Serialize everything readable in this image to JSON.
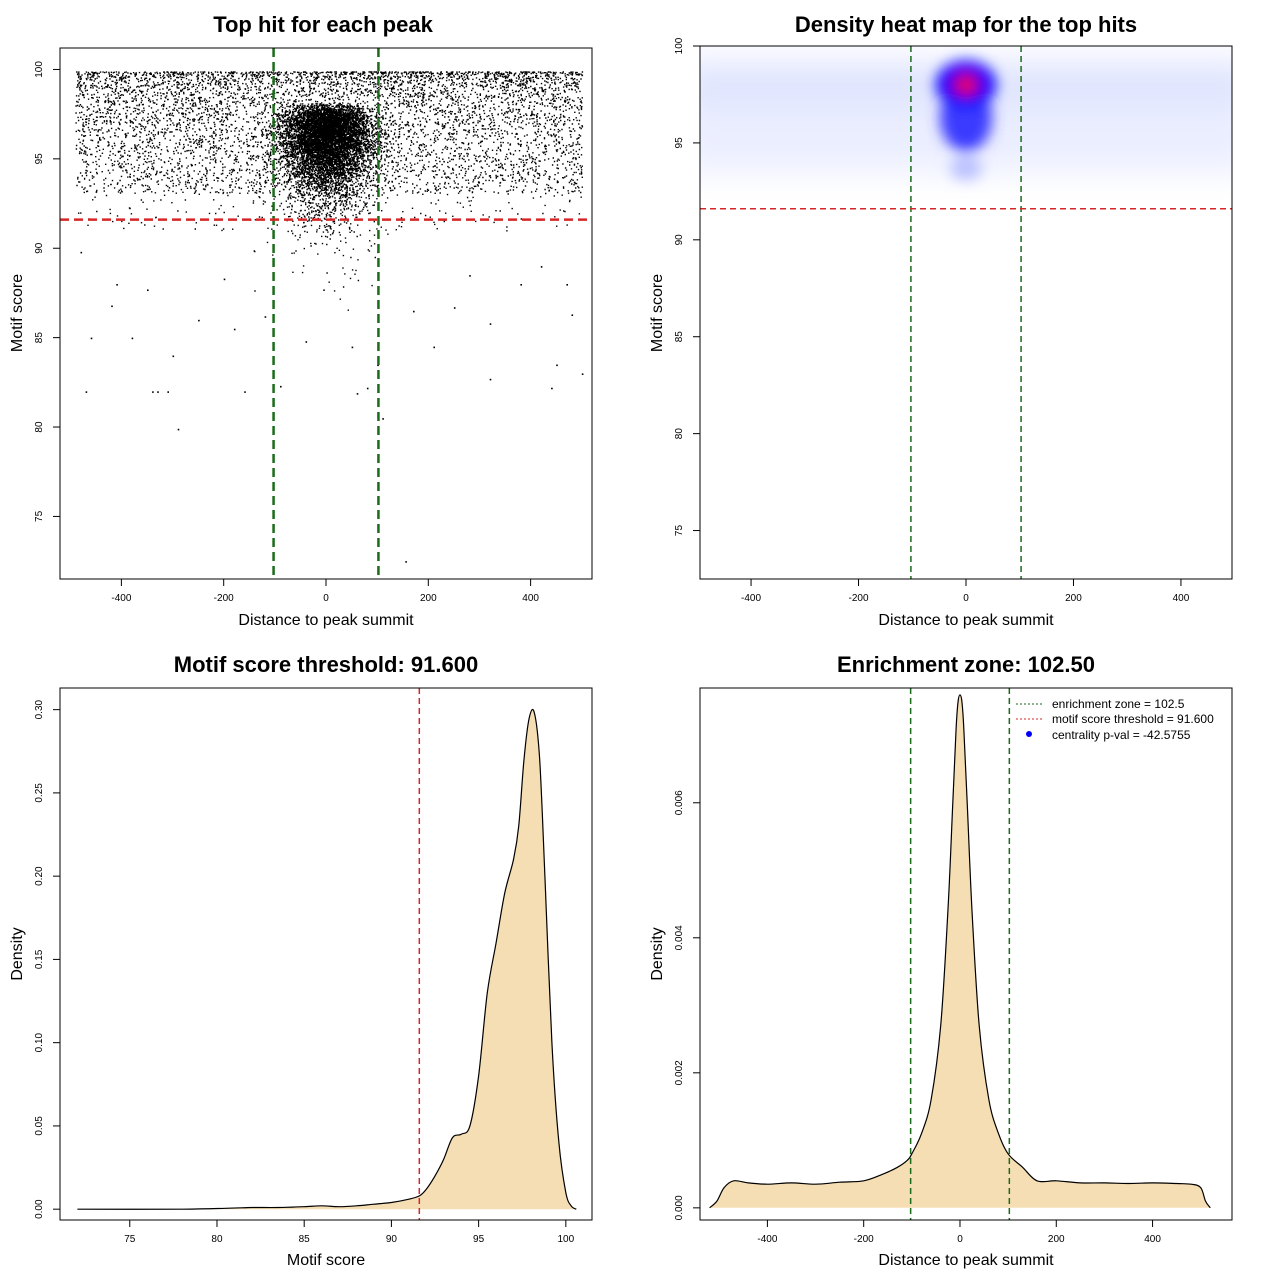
{
  "chart_data": [
    {
      "id": "scatter",
      "type": "scatter",
      "title": "Top hit for each peak",
      "xlabel": "Distance to peak summit",
      "ylabel": "Motif score",
      "xlim": [
        -520,
        520
      ],
      "ylim": [
        71.5,
        101.2
      ],
      "xticks": [
        -400,
        -200,
        0,
        200,
        400
      ],
      "xtick_labels": [
        "-400",
        "-200",
        "0",
        "200",
        "400"
      ],
      "yticks": [
        75,
        80,
        85,
        90,
        95,
        100
      ],
      "ytick_labels": [
        "75",
        "80",
        "85",
        "90",
        "95",
        "100"
      ],
      "hline": {
        "value": 91.6,
        "color": "#d62728"
      },
      "vlines": {
        "values": [
          -102.5,
          102.5
        ],
        "color": "#1a6b1a"
      },
      "points": [
        [
          -470,
          82.0
        ],
        [
          -300,
          84.0
        ],
        [
          -290,
          79.9
        ],
        [
          -340,
          82.0
        ],
        [
          -330,
          82.0
        ],
        [
          -310,
          82.0
        ],
        [
          -160,
          82.0
        ],
        [
          -90,
          82.3
        ],
        [
          -40,
          84.8
        ],
        [
          50,
          84.5
        ],
        [
          60,
          81.9
        ],
        [
          80,
          82.2
        ],
        [
          100,
          83.5
        ],
        [
          110,
          80.5
        ],
        [
          155,
          72.5
        ],
        [
          210,
          84.5
        ],
        [
          320,
          82.7
        ],
        [
          440,
          82.2
        ],
        [
          450,
          83.5
        ],
        [
          500,
          83.0
        ],
        [
          -380,
          85.0
        ],
        [
          -420,
          86.8
        ],
        [
          -250,
          86.0
        ],
        [
          -180,
          85.5
        ],
        [
          -120,
          86.2
        ],
        [
          170,
          86.5
        ],
        [
          250,
          86.7
        ],
        [
          320,
          85.8
        ],
        [
          380,
          88.0
        ],
        [
          470,
          88.0
        ],
        [
          -480,
          89.8
        ],
        [
          -410,
          88.0
        ],
        [
          -350,
          87.7
        ],
        [
          -200,
          88.3
        ],
        [
          280,
          88.5
        ],
        [
          420,
          89.0
        ],
        [
          -460,
          85.0
        ],
        [
          480,
          86.3
        ]
      ]
    },
    {
      "id": "heatmap",
      "type": "heatmap",
      "title": "Density heat map for the top hits",
      "xlabel": "Distance to peak summit",
      "ylabel": "Motif score",
      "xlim": [
        -495,
        495
      ],
      "ylim": [
        72.5,
        100.0
      ],
      "xticks": [
        -400,
        -200,
        0,
        200,
        400
      ],
      "xtick_labels": [
        "-400",
        "-200",
        "0",
        "200",
        "400"
      ],
      "yticks": [
        75,
        80,
        85,
        90,
        95,
        100
      ],
      "ytick_labels": [
        "75",
        "80",
        "85",
        "90",
        "95",
        "100"
      ],
      "hline": {
        "value": 91.6,
        "color": "#d62728"
      },
      "vlines": {
        "values": [
          -102.5,
          102.5
        ],
        "color": "#1a6b1a"
      },
      "peak": {
        "x": 0,
        "y": 98.0
      }
    },
    {
      "id": "score_density",
      "type": "area",
      "title": "Motif score threshold: 91.600",
      "xlabel": "Motif score",
      "ylabel": "Density",
      "xlim": [
        71.0,
        101.5
      ],
      "ylim": [
        -0.0065,
        0.313
      ],
      "xticks": [
        75,
        80,
        85,
        90,
        95,
        100
      ],
      "xtick_labels": [
        "75",
        "80",
        "85",
        "90",
        "95",
        "100"
      ],
      "yticks": [
        0.0,
        0.05,
        0.1,
        0.15,
        0.2,
        0.25,
        0.3
      ],
      "ytick_labels": [
        "0.00",
        "0.05",
        "0.10",
        "0.15",
        "0.20",
        "0.25",
        "0.30"
      ],
      "vline": {
        "value": 91.6,
        "color": "#d62728"
      },
      "fill": "#f5deb3",
      "x": [
        72.0,
        78.0,
        80.5,
        82.0,
        83.5,
        85.0,
        86.0,
        87.0,
        88.0,
        89.0,
        90.0,
        91.0,
        91.6,
        92.0,
        92.5,
        93.0,
        93.5,
        94.0,
        94.5,
        95.0,
        95.5,
        96.0,
        96.5,
        97.0,
        97.3,
        97.6,
        97.9,
        98.2,
        98.5,
        98.8,
        99.2,
        99.6,
        100.0,
        100.3,
        100.6
      ],
      "y": [
        0.0,
        0.0,
        0.0005,
        0.001,
        0.001,
        0.0015,
        0.002,
        0.0015,
        0.002,
        0.003,
        0.004,
        0.006,
        0.008,
        0.012,
        0.02,
        0.03,
        0.043,
        0.045,
        0.05,
        0.08,
        0.13,
        0.16,
        0.19,
        0.21,
        0.23,
        0.27,
        0.295,
        0.298,
        0.27,
        0.2,
        0.1,
        0.04,
        0.01,
        0.002,
        0.0
      ]
    },
    {
      "id": "distance_density",
      "type": "area",
      "title": "Enrichment zone: 102.50",
      "xlabel": "Distance to peak summit",
      "ylabel": "Density",
      "xlim": [
        -540,
        565
      ],
      "ylim": [
        -0.00018,
        0.0077
      ],
      "xticks": [
        -400,
        -200,
        0,
        200,
        400
      ],
      "xtick_labels": [
        "-400",
        "-200",
        "0",
        "200",
        "400"
      ],
      "yticks": [
        0.0,
        0.002,
        0.004,
        0.006
      ],
      "ytick_labels": [
        "0.000",
        "0.002",
        "0.004",
        "0.006"
      ],
      "vlines": {
        "values": [
          -102.5,
          102.5
        ],
        "color": "#1a6b1a"
      },
      "fill": "#f5deb3",
      "x": [
        -520,
        -505,
        -490,
        -470,
        -440,
        -400,
        -350,
        -300,
        -250,
        -200,
        -160,
        -130,
        -110,
        -100,
        -80,
        -60,
        -40,
        -25,
        -15,
        -8,
        -4,
        0,
        4,
        8,
        15,
        25,
        40,
        60,
        80,
        100,
        130,
        160,
        200,
        250,
        300,
        350,
        400,
        450,
        480,
        500,
        510,
        520
      ],
      "y": [
        0.0,
        0.0001,
        0.0003,
        0.0004,
        0.00037,
        0.00035,
        0.00037,
        0.00035,
        0.00038,
        0.0004,
        0.0005,
        0.0006,
        0.0007,
        0.0008,
        0.0011,
        0.0016,
        0.0027,
        0.0044,
        0.006,
        0.0071,
        0.0075,
        0.0076,
        0.0075,
        0.0071,
        0.006,
        0.0044,
        0.0027,
        0.0016,
        0.0011,
        0.0008,
        0.0006,
        0.0004,
        0.0004,
        0.00037,
        0.00037,
        0.00036,
        0.00037,
        0.00036,
        0.00035,
        0.0003,
        0.0001,
        0.0
      ],
      "legend": {
        "position": "top-right",
        "entries": [
          {
            "label": "enrichment zone = 102.5",
            "color": "#1a6b1a",
            "kind": "line"
          },
          {
            "label": "motif score threshold = 91.600",
            "color": "#d62728",
            "kind": "line"
          },
          {
            "label": "centrality p-val = -42.5755",
            "color": "#0000ff",
            "kind": "point"
          }
        ]
      }
    }
  ]
}
